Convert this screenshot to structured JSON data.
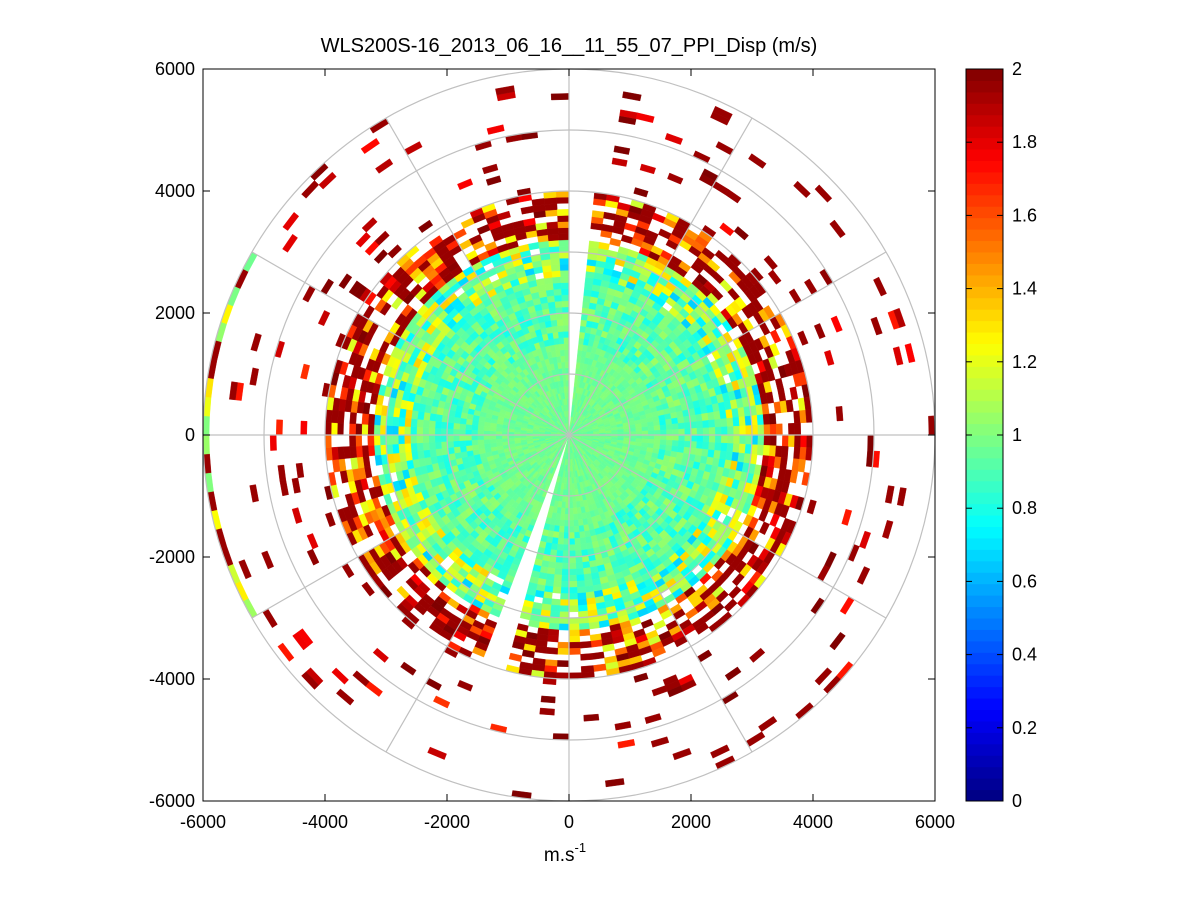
{
  "chart_data": {
    "type": "heatmap",
    "subtype": "polar-ppi-scan",
    "title": "WLS200S-16_2013_06_16__11_55_07_PPI_Disp (m/s)",
    "xlabel_base": "m.s",
    "xlabel_exponent": "-1",
    "ylabel": "",
    "xlim": [
      -6000,
      6000
    ],
    "ylim": [
      -6000,
      6000
    ],
    "x_ticks": [
      -6000,
      -4000,
      -2000,
      0,
      2000,
      4000,
      6000
    ],
    "y_ticks": [
      -6000,
      -4000,
      -2000,
      0,
      2000,
      4000,
      6000
    ],
    "x_tick_labels": [
      "-6000",
      "-4000",
      "-2000",
      "0",
      "2000",
      "4000",
      "6000"
    ],
    "y_tick_labels": [
      "-6000",
      "-4000",
      "-2000",
      "0",
      "2000",
      "4000",
      "6000"
    ],
    "polar_grid": {
      "ring_radii_m": [
        1000,
        2000,
        3000,
        4000,
        5000,
        6000
      ],
      "spoke_angles_deg": [
        0,
        30,
        60,
        90,
        120,
        150,
        180,
        210,
        240,
        270,
        300,
        330
      ]
    },
    "colorbar": {
      "colormap": "jet",
      "range": [
        0,
        2
      ],
      "ticks": [
        0,
        0.2,
        0.4,
        0.6,
        0.8,
        1,
        1.2,
        1.4,
        1.6,
        1.8,
        2
      ],
      "tick_labels": [
        "0",
        "0.2",
        "0.4",
        "0.6",
        "0.8",
        "1",
        "1.2",
        "1.4",
        "1.6",
        "1.8",
        "2"
      ]
    },
    "scan": {
      "range_gate_m": 100,
      "max_range_m": 6000,
      "azimuth_step_deg": 3,
      "gaps_deg_from_north": [
        [
          0,
          6
        ],
        [
          195,
          202
        ]
      ],
      "radial_profile": [
        {
          "range_m": [
            0,
            1500
          ],
          "mean": 0.97,
          "spread": 0.05,
          "coverage": 1.0
        },
        {
          "range_m": [
            1500,
            2600
          ],
          "mean": 0.92,
          "spread": 0.14,
          "coverage": 1.0
        },
        {
          "range_m": [
            2600,
            3200
          ],
          "mean": 1.0,
          "spread": 0.35,
          "coverage": 0.95
        },
        {
          "range_m": [
            3200,
            4000
          ],
          "mean": 1.6,
          "spread": 0.45,
          "coverage": 0.7
        },
        {
          "range_m": [
            4000,
            6000
          ],
          "mean": 1.9,
          "spread": 0.25,
          "coverage": 0.07
        }
      ],
      "west_outer_band": {
        "range_m": [
          5900,
          6000
        ],
        "azimuth_deg": [
          240,
          300
        ],
        "mean": 1.15,
        "spread": 0.2
      }
    }
  }
}
